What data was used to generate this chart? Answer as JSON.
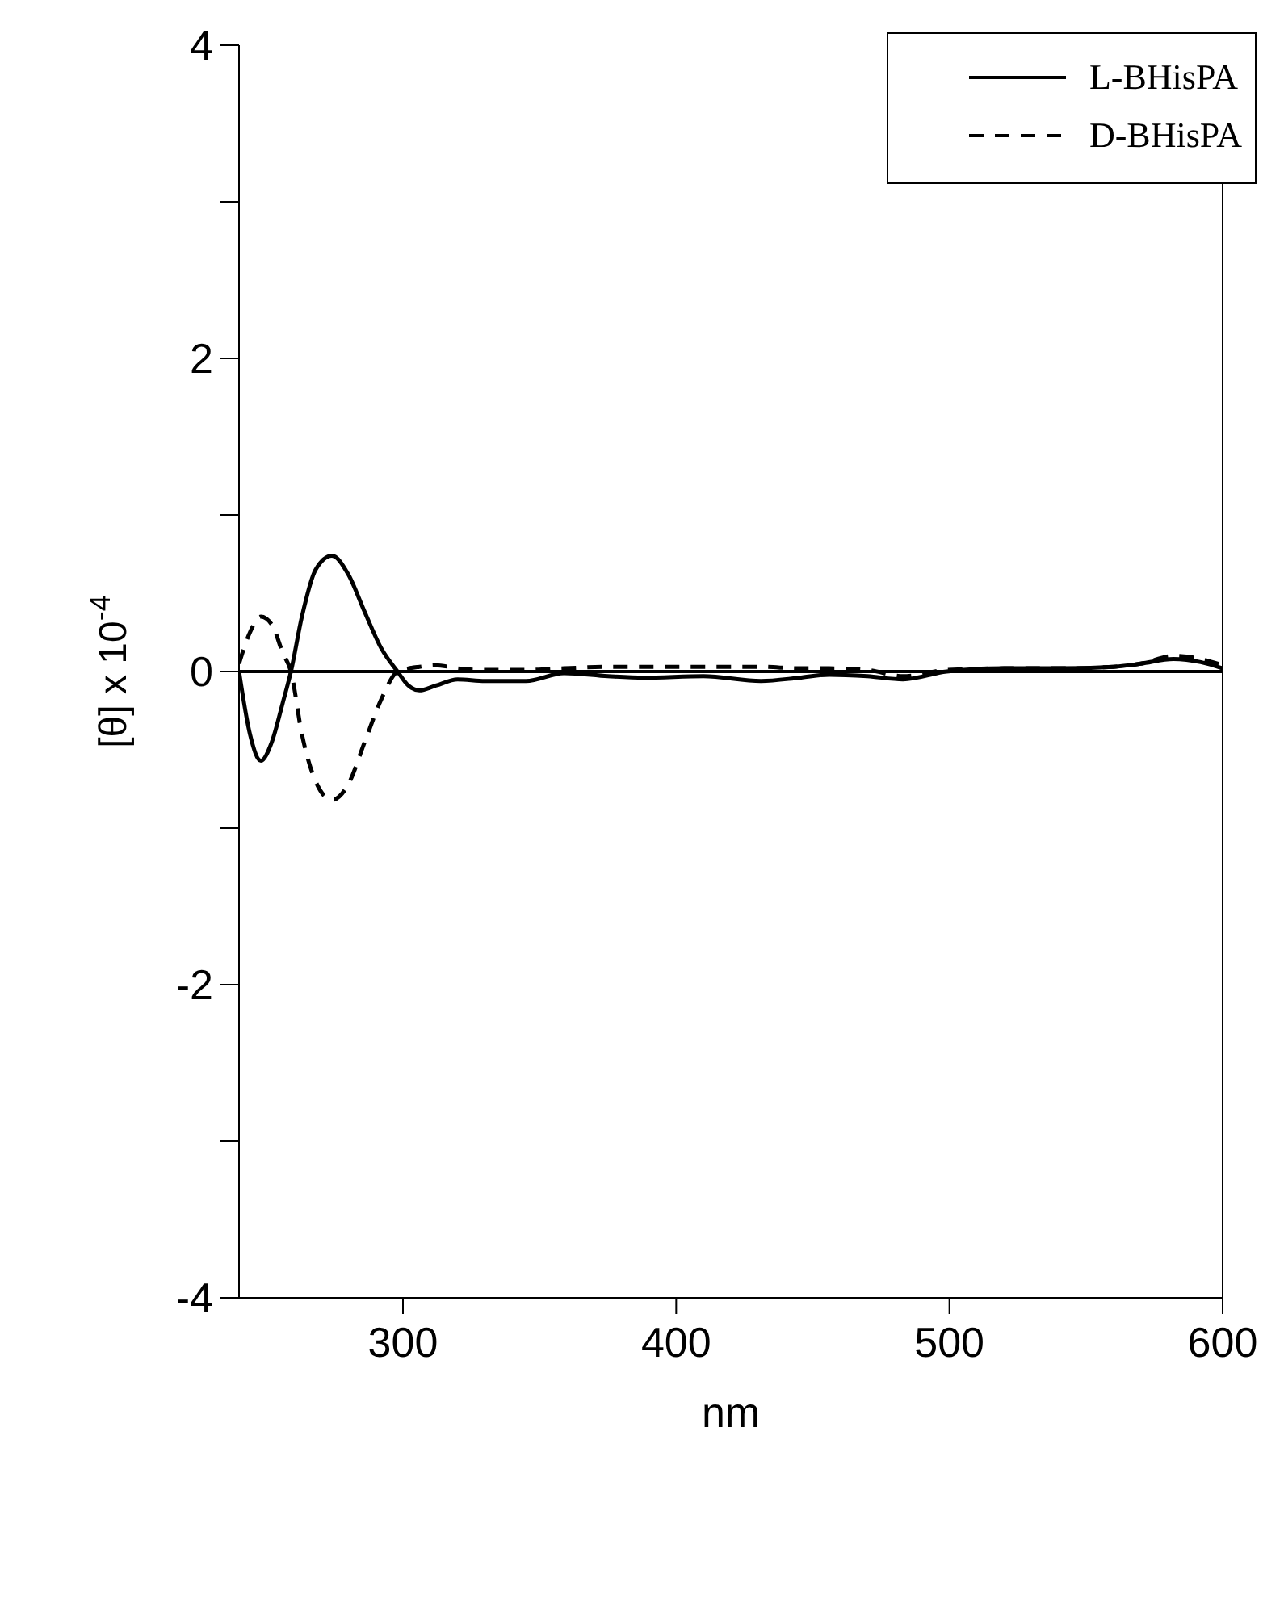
{
  "chart_data": {
    "type": "line",
    "xlabel": "nm",
    "ylabel": "[θ] x 10$^{-4}$",
    "x": [
      240,
      244,
      248,
      252,
      256,
      259,
      263,
      268,
      274,
      280,
      286,
      292,
      298,
      302,
      306,
      312,
      320,
      330,
      345,
      359,
      375,
      388,
      410,
      431,
      445,
      456,
      470,
      483,
      499,
      520,
      540,
      560,
      570,
      582,
      592,
      600
    ],
    "series": [
      {
        "name": "L-BHisPA",
        "color": "#000000",
        "line_style": "solid",
        "values": [
          0,
          -0.4,
          -0.57,
          -0.45,
          -0.2,
          0,
          0.35,
          0.65,
          0.74,
          0.62,
          0.38,
          0.15,
          0,
          -0.09,
          -0.12,
          -0.09,
          -0.05,
          -0.06,
          -0.06,
          -0.01,
          -0.03,
          -0.04,
          -0.03,
          -0.06,
          -0.04,
          -0.02,
          -0.03,
          -0.05,
          0,
          0.02,
          0.02,
          0.03,
          0.05,
          0.08,
          0.06,
          0.02
        ]
      },
      {
        "name": "D-BHisPA",
        "color": "#000000",
        "line_style": "dashed",
        "values": [
          0.05,
          0.25,
          0.35,
          0.3,
          0.12,
          0,
          -0.4,
          -0.7,
          -0.82,
          -0.72,
          -0.45,
          -0.18,
          0,
          0.02,
          0.03,
          0.04,
          0.02,
          0.01,
          0.01,
          0.02,
          0.03,
          0.03,
          0.03,
          0.03,
          0.02,
          0.02,
          0.01,
          -0.03,
          0.01,
          0.02,
          0.02,
          0.03,
          0.05,
          0.1,
          0.08,
          0.04
        ]
      }
    ],
    "xlim": [
      240,
      600
    ],
    "xticks": [
      300,
      400,
      500,
      600
    ],
    "ylim": [
      -4,
      4
    ],
    "yticks": [
      -4,
      {
        "value": -3,
        "label": null
      },
      -2,
      {
        "value": -1,
        "label": null
      },
      0,
      {
        "value": 1,
        "label": null
      },
      2,
      {
        "value": 3,
        "label": null
      },
      4
    ],
    "ref_lines": [
      {
        "axis": "y",
        "value": 0,
        "color": "#000000",
        "line_style": "solid"
      }
    ],
    "grid": false,
    "legend": "top right",
    "marker": "none"
  }
}
